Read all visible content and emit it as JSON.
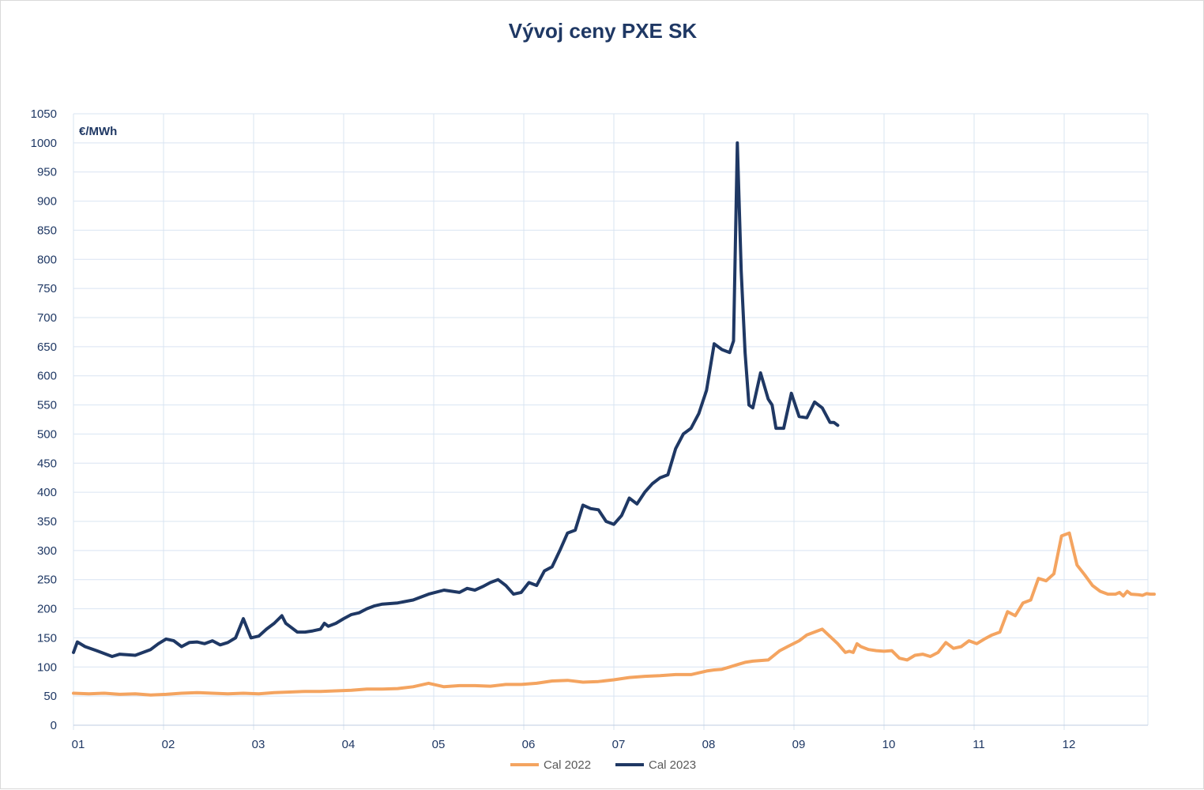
{
  "chart_data": {
    "type": "line",
    "title": "Vývoj ceny PXE SK",
    "ylabel": "€/MWh",
    "xlabel": "",
    "ylim": [
      0,
      1050
    ],
    "yticks": [
      "0",
      "50",
      "100",
      "150",
      "200",
      "250",
      "300",
      "350",
      "400",
      "450",
      "500",
      "550",
      "600",
      "650",
      "700",
      "750",
      "800",
      "850",
      "900",
      "950",
      "1000",
      "1050"
    ],
    "x_categories": [
      "01",
      "02",
      "03",
      "04",
      "05",
      "06",
      "07",
      "08",
      "09",
      "10",
      "11",
      "12"
    ],
    "grid": true,
    "legend_position": "bottom",
    "series": [
      {
        "name": "Cal 2022",
        "color": "#f4a460",
        "x": [
          0,
          0.2,
          0.4,
          0.6,
          0.8,
          1.0,
          1.2,
          1.4,
          1.6,
          1.8,
          2.0,
          2.2,
          2.4,
          2.6,
          2.8,
          3.0,
          3.2,
          3.4,
          3.6,
          3.8,
          4.0,
          4.2,
          4.4,
          4.6,
          4.8,
          5.0,
          5.2,
          5.4,
          5.6,
          5.8,
          6.0,
          6.2,
          6.4,
          6.6,
          6.8,
          7.0,
          7.2,
          7.4,
          7.6,
          7.8,
          8.0,
          8.1,
          8.2,
          8.3,
          8.4,
          8.5,
          8.6,
          8.7,
          8.8,
          9.0,
          9.15,
          9.25,
          9.4,
          9.5,
          9.7,
          9.9,
          10.0,
          10.05,
          10.1,
          10.15,
          10.2,
          10.3,
          10.4,
          10.5,
          10.6,
          10.7,
          10.8,
          10.9,
          11.0,
          11.1,
          11.2,
          11.3,
          11.4,
          11.5,
          11.6,
          11.7,
          11.8,
          11.9,
          12.0,
          12.1,
          12.2,
          12.3,
          12.4,
          12.5,
          12.6,
          12.7,
          12.8,
          12.9,
          13.0,
          13.1,
          13.2,
          13.3,
          13.4,
          13.5,
          13.55,
          13.6,
          13.65,
          13.7,
          13.8,
          13.85,
          13.9,
          13.95,
          14.0
        ],
        "values": [
          55,
          54,
          55,
          53,
          54,
          52,
          53,
          55,
          56,
          55,
          54,
          55,
          54,
          56,
          57,
          58,
          58,
          59,
          60,
          62,
          62,
          63,
          66,
          72,
          66,
          68,
          68,
          67,
          70,
          70,
          72,
          76,
          77,
          74,
          75,
          78,
          82,
          84,
          85,
          87,
          87,
          90,
          93,
          95,
          96,
          100,
          104,
          108,
          110,
          112,
          128,
          135,
          145,
          155,
          165,
          140,
          125,
          127,
          125,
          140,
          135,
          130,
          128,
          127,
          128,
          115,
          112,
          120,
          122,
          118,
          125,
          142,
          132,
          135,
          145,
          140,
          148,
          155,
          160,
          195,
          188,
          210,
          215,
          252,
          248,
          260,
          325,
          330,
          275,
          258,
          240,
          230,
          225,
          225,
          228,
          222,
          230,
          225,
          224,
          223,
          226,
          225,
          225
        ]
      },
      {
        "name": "Cal 2023",
        "color": "#1f3864",
        "x": [
          0,
          0.05,
          0.15,
          0.3,
          0.5,
          0.6,
          0.8,
          1.0,
          1.1,
          1.2,
          1.3,
          1.4,
          1.5,
          1.6,
          1.7,
          1.8,
          1.9,
          2.0,
          2.1,
          2.2,
          2.3,
          2.4,
          2.5,
          2.6,
          2.7,
          2.75,
          2.8,
          2.9,
          3.0,
          3.1,
          3.2,
          3.25,
          3.3,
          3.4,
          3.5,
          3.6,
          3.7,
          3.8,
          3.9,
          4.0,
          4.2,
          4.4,
          4.6,
          4.8,
          5.0,
          5.1,
          5.2,
          5.3,
          5.4,
          5.5,
          5.6,
          5.7,
          5.8,
          5.9,
          6.0,
          6.1,
          6.2,
          6.3,
          6.4,
          6.5,
          6.6,
          6.7,
          6.8,
          6.9,
          7.0,
          7.1,
          7.15,
          7.2,
          7.3,
          7.4,
          7.5,
          7.6,
          7.7,
          7.8,
          7.9,
          8.0,
          8.1,
          8.2,
          8.3,
          8.4,
          8.5,
          8.55,
          8.6,
          8.65,
          8.7,
          8.75,
          8.8,
          8.9,
          9.0,
          9.05,
          9.1,
          9.2,
          9.3,
          9.4,
          9.5,
          9.6,
          9.7,
          9.8,
          9.85,
          9.9
        ],
        "values": [
          125,
          143,
          135,
          128,
          118,
          122,
          120,
          130,
          140,
          148,
          145,
          135,
          142,
          143,
          140,
          145,
          138,
          142,
          150,
          183,
          150,
          153,
          165,
          175,
          188,
          175,
          170,
          160,
          160,
          162,
          165,
          175,
          170,
          175,
          183,
          190,
          193,
          200,
          205,
          208,
          210,
          215,
          225,
          232,
          228,
          235,
          232,
          238,
          245,
          250,
          240,
          225,
          228,
          245,
          240,
          265,
          272,
          300,
          330,
          335,
          378,
          372,
          370,
          350,
          345,
          360,
          375,
          390,
          380,
          400,
          415,
          425,
          430,
          475,
          500,
          510,
          535,
          575,
          655,
          645,
          640,
          660,
          1000,
          780,
          640,
          550,
          545,
          605,
          560,
          550,
          510,
          510,
          570,
          530,
          528,
          555,
          545,
          520,
          520,
          515
        ]
      }
    ]
  }
}
